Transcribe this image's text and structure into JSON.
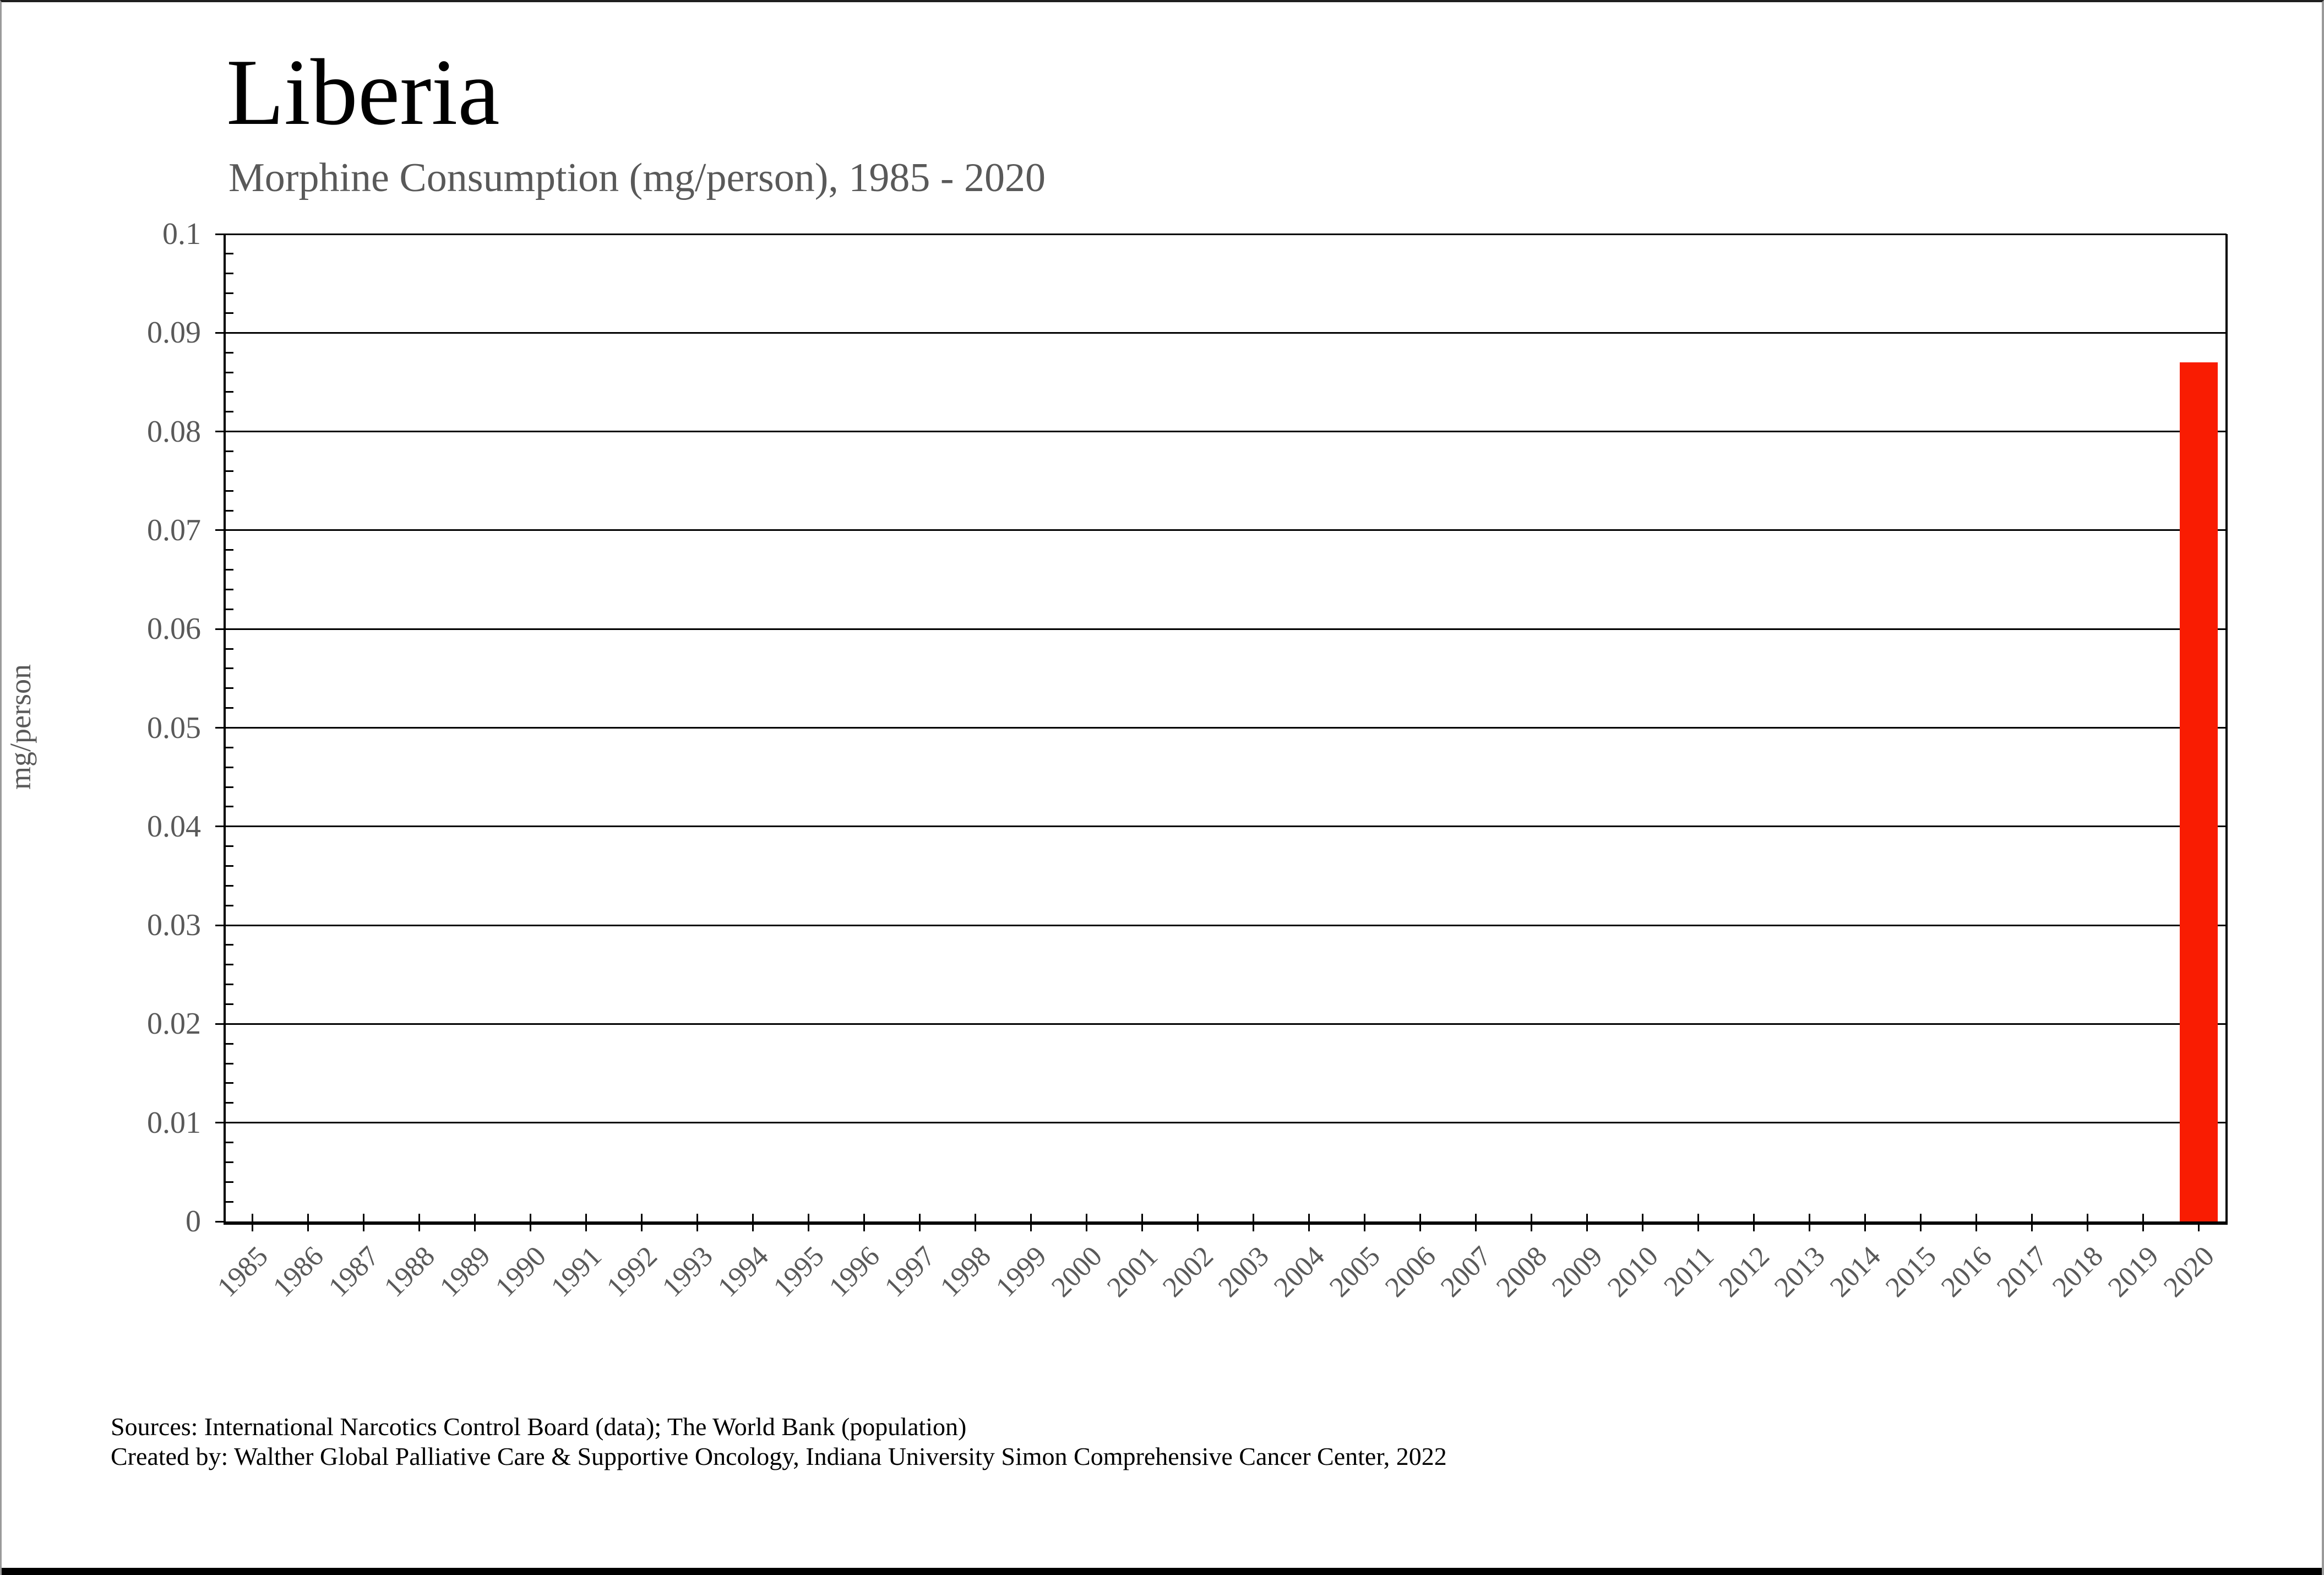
{
  "header": {
    "title": "Liberia",
    "subtitle": "Morphine Consumption (mg/person), 1985 - 2020"
  },
  "chart_data": {
    "type": "bar",
    "title": "Liberia",
    "subtitle": "Morphine Consumption (mg/person), 1985 - 2020",
    "xlabel": "",
    "ylabel": "mg/person",
    "ylim": [
      0,
      0.1
    ],
    "y_major_step": 0.01,
    "y_minor_step": 0.002,
    "y_tick_labels": [
      "0.1",
      "0.09",
      "0.08",
      "0.07",
      "0.06",
      "0.05",
      "0.04",
      "0.03",
      "0.02",
      "0.01",
      "0"
    ],
    "grid": "horizontal-major",
    "legend": "none",
    "bar_color": "#f91c02",
    "axis_color": "#000000",
    "tick_text_color": "#595959",
    "categories": [
      1985,
      1986,
      1987,
      1988,
      1989,
      1990,
      1991,
      1992,
      1993,
      1994,
      1995,
      1996,
      1997,
      1998,
      1999,
      2000,
      2001,
      2002,
      2003,
      2004,
      2005,
      2006,
      2007,
      2008,
      2009,
      2010,
      2011,
      2012,
      2013,
      2014,
      2015,
      2016,
      2017,
      2018,
      2019,
      2020
    ],
    "values": [
      0,
      0,
      0,
      0,
      0,
      0,
      0,
      0,
      0,
      0,
      0,
      0,
      0,
      0,
      0,
      0,
      0,
      0,
      0,
      0,
      0,
      0,
      0,
      0,
      0,
      0,
      0,
      0,
      0,
      0,
      0,
      0,
      0,
      0,
      0,
      0.087
    ]
  },
  "footer": {
    "sources": "Sources: International Narcotics Control Board (data); The World Bank (population)",
    "created_by": "Created by: Walther  Global Palliative Care & Supportive Oncology, Indiana University Simon Comprehensive Cancer Center, 2022"
  }
}
